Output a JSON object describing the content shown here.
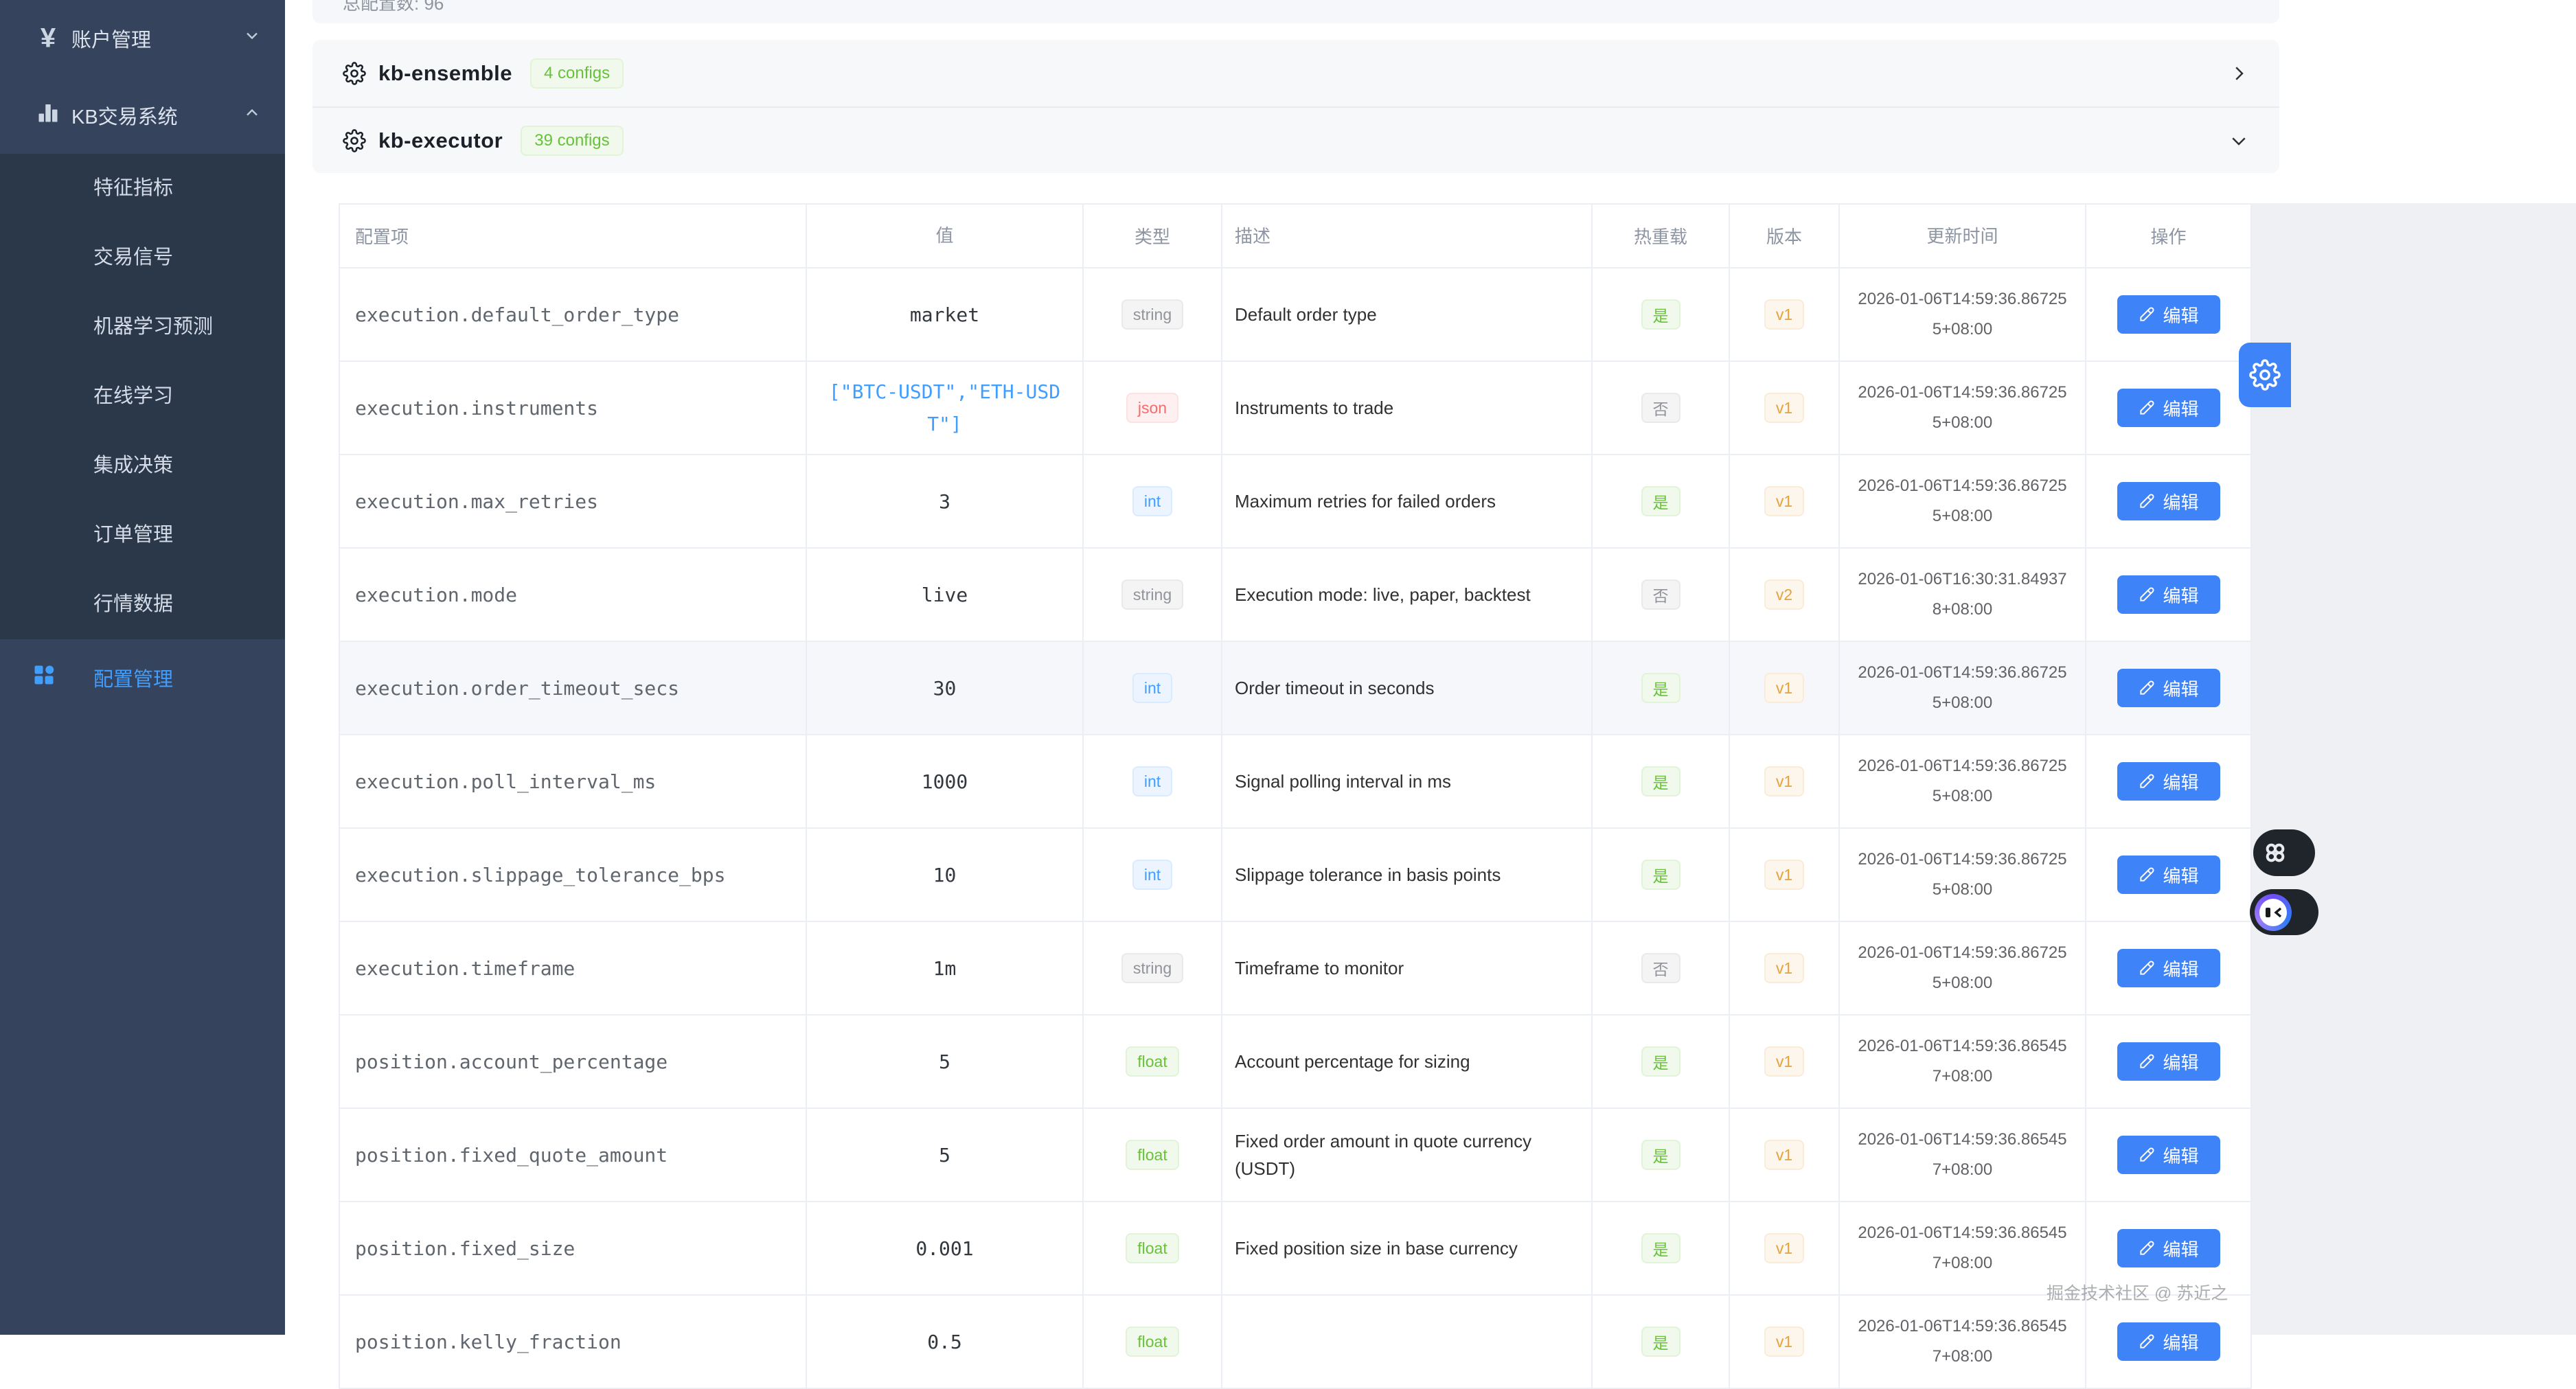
{
  "sidebar": {
    "items": [
      {
        "label": "账户管理",
        "icon": "yen-icon",
        "expanded": false
      },
      {
        "label": "KB交易系统",
        "icon": "bar-chart-icon",
        "expanded": true
      }
    ],
    "sub_items": [
      "特征指标",
      "交易信号",
      "机器学习预测",
      "在线学习",
      "集成决策",
      "订单管理",
      "行情数据"
    ],
    "active_item": {
      "label": "配置管理",
      "icon": "grid-icon"
    }
  },
  "topbar": {
    "total_configs": "总配置数: 96"
  },
  "groups": [
    {
      "name": "kb-ensemble",
      "count_badge": "4 configs",
      "expanded": false
    },
    {
      "name": "kb-executor",
      "count_badge": "39 configs",
      "expanded": true
    }
  ],
  "config_table": {
    "columns": [
      "配置项",
      "值",
      "类型",
      "描述",
      "热重载",
      "版本",
      "更新时间",
      "操作"
    ],
    "edit_label": "编辑",
    "rows": [
      {
        "key": "execution.default_order_type",
        "value": "market",
        "type": "string",
        "desc": "Default order type",
        "hot_reload": "是",
        "version": "v1",
        "updated": "2026-01-06T14:59:36.867255+08:00"
      },
      {
        "key": "execution.instruments",
        "value": "[\"BTC-USDT\",\"ETH-USDT\"]",
        "type": "json",
        "desc": "Instruments to trade",
        "hot_reload": "否",
        "version": "v1",
        "updated": "2026-01-06T14:59:36.867255+08:00"
      },
      {
        "key": "execution.max_retries",
        "value": "3",
        "type": "int",
        "desc": "Maximum retries for failed orders",
        "hot_reload": "是",
        "version": "v1",
        "updated": "2026-01-06T14:59:36.867255+08:00"
      },
      {
        "key": "execution.mode",
        "value": "live",
        "type": "string",
        "desc": "Execution mode: live, paper, backtest",
        "hot_reload": "否",
        "version": "v2",
        "updated": "2026-01-06T16:30:31.849378+08:00"
      },
      {
        "key": "execution.order_timeout_secs",
        "value": "30",
        "type": "int",
        "desc": "Order timeout in seconds",
        "hot_reload": "是",
        "version": "v1",
        "updated": "2026-01-06T14:59:36.867255+08:00",
        "highlighted": true
      },
      {
        "key": "execution.poll_interval_ms",
        "value": "1000",
        "type": "int",
        "desc": "Signal polling interval in ms",
        "hot_reload": "是",
        "version": "v1",
        "updated": "2026-01-06T14:59:36.867255+08:00"
      },
      {
        "key": "execution.slippage_tolerance_bps",
        "value": "10",
        "type": "int",
        "desc": "Slippage tolerance in basis points",
        "hot_reload": "是",
        "version": "v1",
        "updated": "2026-01-06T14:59:36.867255+08:00"
      },
      {
        "key": "execution.timeframe",
        "value": "1m",
        "type": "string",
        "desc": "Timeframe to monitor",
        "hot_reload": "否",
        "version": "v1",
        "updated": "2026-01-06T14:59:36.867255+08:00"
      },
      {
        "key": "position.account_percentage",
        "value": "5",
        "type": "float",
        "desc": "Account percentage for sizing",
        "hot_reload": "是",
        "version": "v1",
        "updated": "2026-01-06T14:59:36.865457+08:00"
      },
      {
        "key": "position.fixed_quote_amount",
        "value": "5",
        "type": "float",
        "desc": "Fixed order amount in quote currency (USDT)",
        "hot_reload": "是",
        "version": "v1",
        "updated": "2026-01-06T14:59:36.865457+08:00"
      },
      {
        "key": "position.fixed_size",
        "value": "0.001",
        "type": "float",
        "desc": "Fixed position size in base currency",
        "hot_reload": "是",
        "version": "v1",
        "updated": "2026-01-06T14:59:36.865457+08:00"
      },
      {
        "key": "position.kelly_fraction",
        "value": "0.5",
        "type": "float",
        "desc": "",
        "hot_reload": "是",
        "version": "v1",
        "updated": "2026-01-06T14:59:36.865457+08:00"
      }
    ]
  },
  "watermark": "掘金技术社区 @ 苏近之",
  "colors": {
    "accent": "#409eff",
    "success": "#67c23a",
    "warning": "#e6a23c",
    "danger": "#f56c6c",
    "info": "#909399",
    "sidebar_bg": "#35435c",
    "edit_button": "#3f83f8"
  }
}
